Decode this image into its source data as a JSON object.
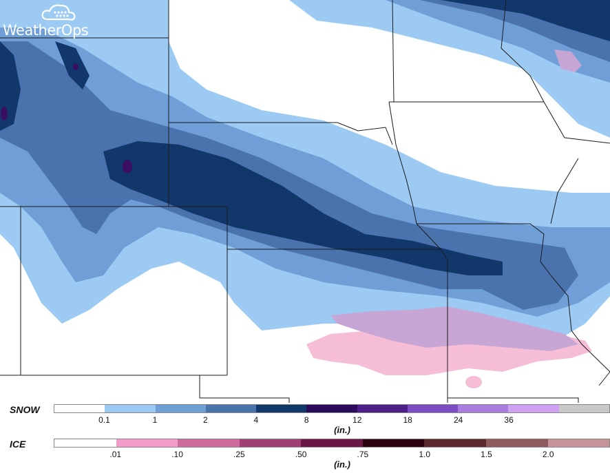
{
  "logo": {
    "text": "WeatherOps"
  },
  "map": {
    "colors": {
      "background": "#ffffff",
      "snow_light": "#9ccaf2",
      "snow_1": "#6f9fd6",
      "snow_2": "#4a73ad",
      "snow_4": "#11376b",
      "snow_8": "#3a0f63",
      "ice_light": "#f6bdd6",
      "ice_mix": "#c7a5d4",
      "ice_pink": "#e79ac8",
      "border": "#1a1a1a"
    }
  },
  "snow_legend": {
    "title": "SNOW",
    "unit": "(in.)",
    "colors": [
      "#ffffff",
      "#9ccaf2",
      "#6f9fd6",
      "#4a73ad",
      "#11376b",
      "#2d0b5c",
      "#4b2189",
      "#7e4cc2",
      "#a77de0",
      "#cfa1f3",
      "#c8c8c8"
    ],
    "ticks": [
      "0.1",
      "1",
      "2",
      "4",
      "8",
      "12",
      "18",
      "24",
      "36"
    ]
  },
  "ice_legend": {
    "title": "ICE",
    "unit": "(in.)",
    "colors": [
      "#ffffff",
      "#f39bc9",
      "#cd6b9d",
      "#a03f75",
      "#6a1747",
      "#2c0411",
      "#5b2a2e",
      "#8f5a5e",
      "#c69498"
    ],
    "ticks": [
      ".01",
      ".10",
      ".25",
      ".50",
      ".75",
      "1.0",
      "1.5",
      "2.0"
    ]
  }
}
